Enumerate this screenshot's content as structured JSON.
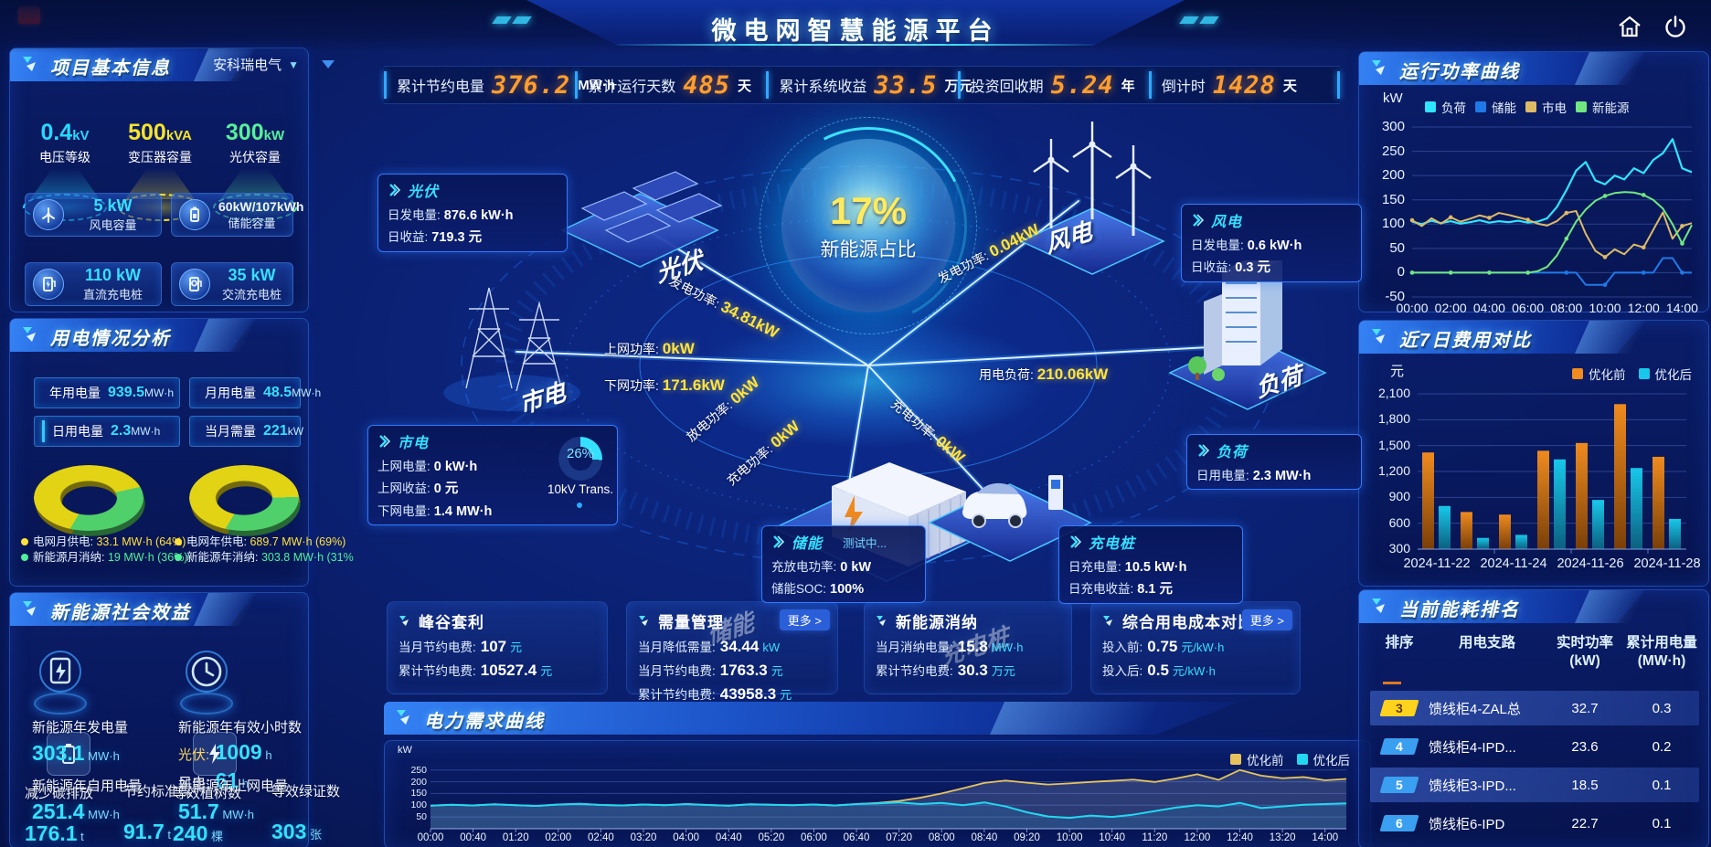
{
  "header": {
    "title": "微电网智慧能源平台",
    "icons": [
      {
        "name": "home-icon"
      },
      {
        "name": "power-icon"
      }
    ]
  },
  "kpi_bar": {
    "items": [
      {
        "label": "累计节约电量",
        "value": "376.2",
        "unit": "MW·h"
      },
      {
        "label": "累计运行天数",
        "value": "485",
        "unit": "天"
      },
      {
        "label": "累计系统收益",
        "value": "33.5",
        "unit": "万元"
      },
      {
        "label": "投资回收期",
        "value": "5.24",
        "unit": "年"
      },
      {
        "label": "倒计时",
        "value": "1428",
        "unit": "天"
      }
    ]
  },
  "project_info": {
    "title": "项目基本信息",
    "company": "安科瑞电气",
    "pedestals": [
      {
        "value": "0.4",
        "unit": "kV",
        "label": "电压等级",
        "color": "#27d8ff",
        "glow": "rgba(39,216,255,0.45)"
      },
      {
        "value": "500",
        "unit": "kVA",
        "label": "变压器容量",
        "color": "#f5e42a",
        "glow": "rgba(245,228,42,0.4)"
      },
      {
        "value": "300",
        "unit": "kW",
        "label": "光伏容量",
        "color": "#57f098",
        "glow": "rgba(87,240,152,0.4)"
      }
    ],
    "stats": [
      {
        "value": "5 kW",
        "label": "风电容量",
        "icon": "wind-turbine-icon",
        "accent": "cyan"
      },
      {
        "value": "60kW/107kWh",
        "label": "储能容量",
        "icon": "battery-icon",
        "accent": "white"
      },
      {
        "value": "110 kW",
        "label": "直流充电桩",
        "icon": "dc-charger-icon",
        "accent": "cyan"
      },
      {
        "value": "35 kW",
        "label": "交流充电桩",
        "icon": "ac-charger-icon",
        "accent": "cyan"
      }
    ]
  },
  "power_analysis": {
    "title": "用电情况分析",
    "stats": [
      {
        "label": "年用电量",
        "value": "939.5",
        "unit": "MW·h"
      },
      {
        "label": "月用电量",
        "value": "48.5",
        "unit": "MW·h"
      },
      {
        "label": "日用电量",
        "value": "2.3",
        "unit": "MW·h"
      },
      {
        "label": "当月需量",
        "value": "221",
        "unit": "kW"
      }
    ],
    "donuts": [
      {
        "grid_pct": 64,
        "legend": [
          {
            "label": "电网月供电",
            "value": "33.1 MW·h (64%)",
            "color": "#ffe13c"
          },
          {
            "label": "新能源月消纳",
            "value": "19 MW·h (36%)",
            "color": "#4ef09a"
          }
        ]
      },
      {
        "grid_pct": 69,
        "legend": [
          {
            "label": "电网年供电",
            "value": "689.7 MW·h (69%)",
            "color": "#ffe13c"
          },
          {
            "label": "新能源年消纳",
            "value": "303.8 MW·h (31%",
            "color": "#4ef09a"
          }
        ]
      }
    ]
  },
  "social_benefit": {
    "title": "新能源社会效益",
    "items": [
      {
        "label": "新能源年发电量",
        "value": "303.1",
        "unit": "MW·h"
      },
      {
        "label": "新能源年有效小时数",
        "rows": [
          {
            "k": "光伏:",
            "v": "1009",
            "u": "h",
            "kc": "#ffd95e"
          },
          {
            "k": "风电:",
            "v": "61",
            "u": "h",
            "kc": "#ffffff"
          }
        ]
      },
      {
        "label": "新能源年自用电量",
        "value": "251.4",
        "unit": "MW·h"
      },
      {
        "label": "减少碳排放",
        "value": "176.1",
        "unit": "t"
      },
      {
        "label": "节约标准煤",
        "value": "91.7",
        "unit": "t"
      },
      {
        "label": "新能源年上网电量",
        "value": "51.7",
        "unit": "MW·h"
      },
      {
        "label": "等效植树数",
        "value": "240",
        "unit": "棵"
      },
      {
        "label": "等效绿证数",
        "value": "303",
        "unit": "张"
      }
    ]
  },
  "center": {
    "core_pct": "17%",
    "core_label": "新能源占比",
    "transformer": {
      "pct": "26%",
      "label": "10kV Trans."
    },
    "nodes": [
      "光伏",
      "风电",
      "市电",
      "负荷",
      "储能",
      "充电桩"
    ],
    "flows": [
      {
        "label": "发电功率:",
        "value": "34.81kW"
      },
      {
        "label": "上网功率:",
        "value": "0kW"
      },
      {
        "label": "下网功率:",
        "value": "171.6kW"
      },
      {
        "label": "发电功率:",
        "value": "0.04kW"
      },
      {
        "label": "用电负荷:",
        "value": "210.06kW"
      },
      {
        "label": "放电功率:",
        "value": "0kW"
      },
      {
        "label": "充电功率:",
        "value": "0kW"
      },
      {
        "label": "充电功率:",
        "value": "0kW"
      }
    ],
    "info_boxes": [
      {
        "id": "pv",
        "title": "光伏",
        "rows": [
          {
            "label": "日发电量:",
            "value": "876.6 kW·h"
          },
          {
            "label": "日收益:",
            "value": "719.3 元"
          }
        ]
      },
      {
        "id": "wind",
        "title": "风电",
        "rows": [
          {
            "label": "日发电量:",
            "value": "0.6 kW·h"
          },
          {
            "label": "日收益:",
            "value": "0.3 元"
          }
        ]
      },
      {
        "id": "grid",
        "title": "市电",
        "rows": [
          {
            "label": "上网电量:",
            "value": "0 kW·h"
          },
          {
            "label": "上网收益:",
            "value": "0 元"
          },
          {
            "label": "下网电量:",
            "value": "1.4 MW·h"
          }
        ]
      },
      {
        "id": "load",
        "title": "负荷",
        "rows": [
          {
            "label": "日用电量:",
            "value": "2.3 MW·h"
          }
        ]
      },
      {
        "id": "storage",
        "title": "储能",
        "status": "测试中...",
        "rows": [
          {
            "label": "充放电功率:",
            "value": "0 kW"
          },
          {
            "label": "储能SOC:",
            "value": "100%"
          }
        ]
      },
      {
        "id": "charger",
        "title": "充电桩",
        "rows": [
          {
            "label": "日充电量:",
            "value": "10.5 kW·h"
          },
          {
            "label": "日充电收益:",
            "value": "8.1 元"
          }
        ]
      }
    ]
  },
  "benefit_cards": [
    {
      "title": "峰谷套利",
      "rows": [
        {
          "label": "当月节约电费:",
          "value": "107",
          "unit": "元"
        },
        {
          "label": "累计节约电费:",
          "value": "10527.4",
          "unit": "元"
        }
      ]
    },
    {
      "title": "需量管理",
      "more_label": "更多 >",
      "rows": [
        {
          "label": "当月降低需量:",
          "value": "34.44",
          "unit": "kW"
        },
        {
          "label": "当月节约电费:",
          "value": "1763.3",
          "unit": "元"
        },
        {
          "label": "累计节约电费:",
          "value": "43958.3",
          "unit": "元"
        }
      ]
    },
    {
      "title": "新能源消纳",
      "rows": [
        {
          "label": "当月消纳电量:",
          "value": "15.8",
          "unit": "MW·h"
        },
        {
          "label": "累计节约电费:",
          "value": "30.3",
          "unit": "万元"
        }
      ]
    },
    {
      "title": "综合用电成本对比",
      "more_label": "更多 >",
      "rows": [
        {
          "label": "投入前:",
          "value": "0.75",
          "unit": "元/kW·h"
        },
        {
          "label": "投入后:",
          "value": "0.5",
          "unit": "元/kW·h"
        }
      ]
    }
  ],
  "chart_data": [
    {
      "id": "power_curve",
      "type": "line",
      "title": "运行功率曲线",
      "ylabel": "kW",
      "ylim": [
        -50,
        300
      ],
      "yticks": [
        300,
        250,
        200,
        150,
        100,
        50,
        0,
        -50
      ],
      "xticks": [
        "00:00",
        "02:00",
        "04:00",
        "06:00",
        "08:00",
        "10:00",
        "12:00",
        "14:00"
      ],
      "x_hours_max": 14.5,
      "legend_position": "top",
      "grid": true,
      "series": [
        {
          "name": "负荷",
          "color": "#2ee6ff",
          "values": [
            105,
            100,
            107,
            102,
            106,
            101,
            104,
            108,
            103,
            106,
            104,
            107,
            103,
            105,
            112,
            135,
            170,
            210,
            228,
            190,
            182,
            200,
            192,
            215,
            205,
            232,
            246,
            275,
            215,
            207
          ]
        },
        {
          "name": "储能",
          "color": "#1f7ae8",
          "values": [
            0,
            0,
            0,
            0,
            0,
            0,
            0,
            0,
            0,
            0,
            0,
            0,
            0,
            0,
            0,
            0,
            0,
            0,
            -25,
            -25,
            -25,
            0,
            0,
            0,
            0,
            0,
            30,
            30,
            0,
            0
          ]
        },
        {
          "name": "市电",
          "color": "#ddba66",
          "values": [
            108,
            96,
            112,
            101,
            114,
            105,
            111,
            118,
            113,
            123,
            119,
            114,
            109,
            101,
            97,
            106,
            123,
            127,
            80,
            45,
            32,
            48,
            38,
            58,
            52,
            88,
            124,
            70,
            96,
            102
          ]
        },
        {
          "name": "新能源",
          "color": "#70e87f",
          "values": [
            0,
            0,
            0,
            0,
            0,
            0,
            0,
            0,
            0,
            0,
            0,
            0,
            0,
            3,
            12,
            35,
            70,
            105,
            130,
            148,
            158,
            164,
            166,
            165,
            160,
            150,
            132,
            100,
            60,
            98
          ]
        }
      ]
    },
    {
      "id": "cost_compare",
      "type": "bar",
      "title": "近7日费用对比",
      "ylabel": "元",
      "ylim": [
        300,
        2100
      ],
      "yticks": [
        2100,
        1800,
        1500,
        1200,
        900,
        600,
        300
      ],
      "ytick_labels": [
        "2,100",
        "1,800",
        "1,500",
        "1,200",
        "900",
        "600",
        "300"
      ],
      "categories": [
        "2024-11-22",
        "2024-11-23",
        "2024-11-24",
        "2024-11-25",
        "2024-11-26",
        "2024-11-27",
        "2024-11-28"
      ],
      "xtick_labels": [
        "2024-11-22",
        "2024-11-24",
        "2024-11-26",
        "2024-11-28"
      ],
      "legend_position": "top",
      "grid": true,
      "series": [
        {
          "name": "优化前",
          "color": "#ef8b1f",
          "values": [
            1420,
            730,
            700,
            1440,
            1530,
            1980,
            1370
          ]
        },
        {
          "name": "优化后",
          "color": "#18c8ea",
          "values": [
            800,
            430,
            465,
            1340,
            870,
            1240,
            650
          ]
        }
      ]
    },
    {
      "id": "demand_curve",
      "type": "line",
      "title": "电力需求曲线",
      "ylabel": "kW",
      "ylim": [
        0,
        280
      ],
      "yticks": [
        250,
        200,
        150,
        100,
        50
      ],
      "xticks": [
        "00:00",
        "00:40",
        "01:20",
        "02:00",
        "02:40",
        "03:20",
        "04:00",
        "04:40",
        "05:20",
        "06:00",
        "06:40",
        "07:20",
        "08:00",
        "08:40",
        "09:20",
        "10:00",
        "10:40",
        "11:20",
        "12:00",
        "12:40",
        "13:20",
        "14:00"
      ],
      "x_hours_max": 14.333,
      "legend_position": "top-right",
      "grid": true,
      "series": [
        {
          "name": "优化前",
          "color": "#e6c35c",
          "values": [
            98,
            102,
            99,
            104,
            100,
            97,
            103,
            106,
            101,
            99,
            103,
            100,
            105,
            101,
            98,
            104,
            102,
            100,
            103,
            99,
            105,
            110,
            118,
            132,
            150,
            172,
            195,
            205,
            196,
            188,
            193,
            199,
            204,
            209,
            199,
            214,
            232,
            208,
            250,
            226,
            215,
            220,
            206,
            212
          ]
        },
        {
          "name": "优化后",
          "color": "#22d8f0",
          "values": [
            98,
            102,
            99,
            104,
            100,
            97,
            103,
            106,
            101,
            99,
            103,
            100,
            105,
            101,
            98,
            104,
            102,
            100,
            103,
            99,
            105,
            108,
            112,
            105,
            110,
            100,
            112,
            95,
            70,
            52,
            46,
            56,
            50,
            60,
            75,
            90,
            100,
            95,
            110,
            88,
            95,
            102,
            105,
            108
          ]
        }
      ]
    }
  ],
  "ranking": {
    "title": "当前能耗排名",
    "headers": [
      [
        "排序"
      ],
      [
        "用电支路"
      ],
      [
        "实时功率",
        "(kW)"
      ],
      [
        "累计用电量",
        "(MW·h)"
      ]
    ],
    "rows": [
      {
        "rank": "3",
        "branch": "馈线柜4-ZAL总",
        "power": "32.7",
        "energy": "0.3",
        "badge": "#ffd21e",
        "badge_text": "#5b3b00"
      },
      {
        "rank": "4",
        "branch": "馈线柜4-IPD...",
        "power": "23.6",
        "energy": "0.2",
        "badge": "#3a9ff0",
        "badge_text": "#ffffff"
      },
      {
        "rank": "5",
        "branch": "馈线柜3-IPD...",
        "power": "18.5",
        "energy": "0.1",
        "badge": "#3a9ff0",
        "badge_text": "#ffffff"
      },
      {
        "rank": "6",
        "branch": "馈线柜6-IPD",
        "power": "22.7",
        "energy": "0.1",
        "badge": "#3a9ff0",
        "badge_text": "#ffffff"
      }
    ]
  },
  "colors": {
    "grid_supply": "#ffe13c",
    "renewable": "#4ef09a",
    "kpi_value": "#ff9d2e",
    "accent_cyan": "#35e0ff"
  }
}
